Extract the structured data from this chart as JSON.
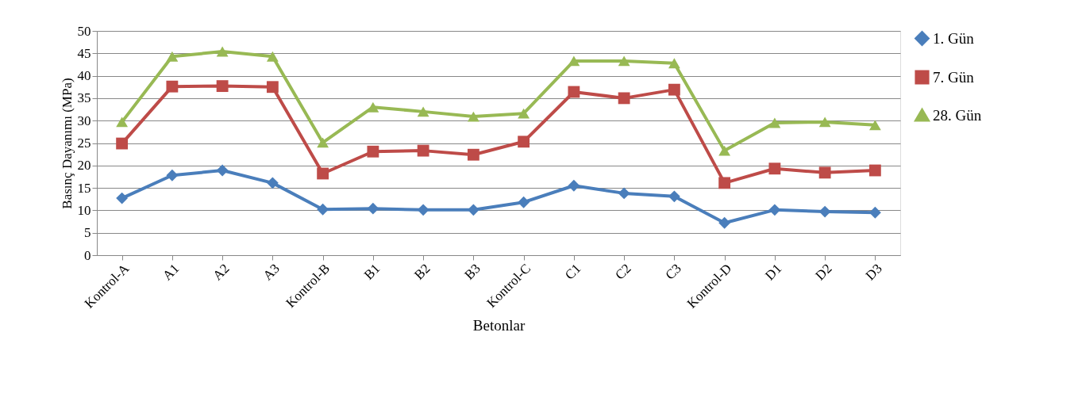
{
  "chart_data": {
    "type": "line",
    "xlabel": "Betonlar",
    "ylabel": "Basınç Dayanımı (MPa)",
    "categories": [
      "Kontrol-A",
      "A1",
      "A2",
      "A3",
      "Kontrol-B",
      "B1",
      "B2",
      "B3",
      "Kontrol-C",
      "C1",
      "C2",
      "C3",
      "Kontrol-D",
      "D1",
      "D2",
      "D3"
    ],
    "series": [
      {
        "name": "1. Gün",
        "color": "#4a7ebb",
        "marker": "diamond",
        "values": [
          12.7,
          17.8,
          18.9,
          16.1,
          10.2,
          10.4,
          10.1,
          10.1,
          11.8,
          15.5,
          13.8,
          13.1,
          7.2,
          10.1,
          9.7,
          9.5
        ]
      },
      {
        "name": "7. Gün",
        "color": "#be4b48",
        "marker": "square",
        "values": [
          24.9,
          37.6,
          37.7,
          37.5,
          18.2,
          23.1,
          23.3,
          22.4,
          25.3,
          36.4,
          35.0,
          36.9,
          16.1,
          19.3,
          18.4,
          18.9
        ]
      },
      {
        "name": "28. Gün",
        "color": "#98b954",
        "marker": "triangle",
        "values": [
          29.7,
          44.3,
          45.4,
          44.3,
          25.1,
          33.0,
          32.0,
          30.9,
          31.6,
          43.3,
          43.3,
          42.8,
          23.3,
          29.5,
          29.7,
          29.0
        ]
      }
    ],
    "ylim": [
      0,
      50
    ],
    "yticks": [
      0,
      5,
      10,
      15,
      20,
      25,
      30,
      35,
      40,
      45,
      50
    ],
    "grid": "y",
    "legend": "right",
    "line_style": "solid"
  }
}
